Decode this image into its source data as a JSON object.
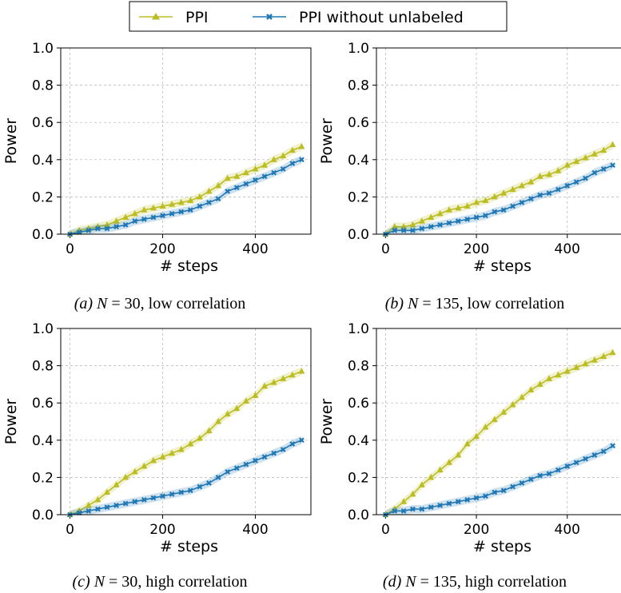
{
  "legend": {
    "entries": [
      {
        "label": "PPI",
        "color": "#bcbd22",
        "marker": "triangle"
      },
      {
        "label": "PPI without unlabeled",
        "color": "#1f77b4",
        "marker": "x"
      }
    ]
  },
  "chart_data": [
    {
      "type": "line",
      "caption": {
        "tag": "(a)",
        "variable": "N",
        "eq": " = 30",
        "text": ", low correlation"
      },
      "xlabel": "# steps",
      "ylabel": "Power",
      "xlim": [
        -20,
        520
      ],
      "ylim": [
        0,
        1.0
      ],
      "xticks": [
        "0",
        "200",
        "400"
      ],
      "yticks": [
        "0.0",
        "0.2",
        "0.4",
        "0.6",
        "0.8",
        "1.0"
      ],
      "grid": true,
      "x": [
        0,
        20,
        40,
        60,
        80,
        100,
        120,
        140,
        160,
        180,
        200,
        220,
        240,
        260,
        280,
        300,
        320,
        340,
        360,
        380,
        400,
        420,
        440,
        460,
        480,
        500
      ],
      "series": [
        {
          "name": "PPI",
          "values": [
            0.0,
            0.02,
            0.03,
            0.04,
            0.05,
            0.07,
            0.09,
            0.11,
            0.13,
            0.14,
            0.15,
            0.16,
            0.17,
            0.18,
            0.2,
            0.23,
            0.26,
            0.3,
            0.31,
            0.33,
            0.35,
            0.37,
            0.4,
            0.42,
            0.45,
            0.47
          ]
        },
        {
          "name": "PPI without unlabeled",
          "values": [
            0.0,
            0.01,
            0.02,
            0.03,
            0.03,
            0.04,
            0.05,
            0.07,
            0.08,
            0.09,
            0.1,
            0.11,
            0.12,
            0.13,
            0.15,
            0.17,
            0.19,
            0.23,
            0.25,
            0.27,
            0.29,
            0.31,
            0.33,
            0.35,
            0.38,
            0.4
          ]
        }
      ]
    },
    {
      "type": "line",
      "caption": {
        "tag": "(b)",
        "variable": "N",
        "eq": " = 135",
        "text": ", low correlation"
      },
      "xlabel": "# steps",
      "ylabel": "Power",
      "xlim": [
        -20,
        520
      ],
      "ylim": [
        0,
        1.0
      ],
      "xticks": [
        "0",
        "200",
        "400"
      ],
      "yticks": [
        "0.0",
        "0.2",
        "0.4",
        "0.6",
        "0.8",
        "1.0"
      ],
      "grid": true,
      "x": [
        0,
        20,
        40,
        60,
        80,
        100,
        120,
        140,
        160,
        180,
        200,
        220,
        240,
        260,
        280,
        300,
        320,
        340,
        360,
        380,
        400,
        420,
        440,
        460,
        480,
        500
      ],
      "series": [
        {
          "name": "PPI",
          "values": [
            0.0,
            0.04,
            0.04,
            0.05,
            0.07,
            0.09,
            0.11,
            0.13,
            0.14,
            0.15,
            0.17,
            0.18,
            0.2,
            0.22,
            0.24,
            0.26,
            0.28,
            0.31,
            0.32,
            0.34,
            0.37,
            0.39,
            0.41,
            0.43,
            0.45,
            0.48
          ]
        },
        {
          "name": "PPI without unlabeled",
          "values": [
            0.0,
            0.02,
            0.02,
            0.02,
            0.03,
            0.04,
            0.05,
            0.06,
            0.07,
            0.08,
            0.09,
            0.1,
            0.12,
            0.13,
            0.15,
            0.17,
            0.19,
            0.21,
            0.22,
            0.24,
            0.26,
            0.28,
            0.3,
            0.33,
            0.35,
            0.37
          ]
        }
      ]
    },
    {
      "type": "line",
      "caption": {
        "tag": "(c)",
        "variable": "N",
        "eq": " = 30",
        "text": ", high correlation"
      },
      "xlabel": "# steps",
      "ylabel": "Power",
      "xlim": [
        -20,
        520
      ],
      "ylim": [
        0,
        1.0
      ],
      "xticks": [
        "0",
        "200",
        "400"
      ],
      "yticks": [
        "0.0",
        "0.2",
        "0.4",
        "0.6",
        "0.8",
        "1.0"
      ],
      "grid": true,
      "x": [
        0,
        20,
        40,
        60,
        80,
        100,
        120,
        140,
        160,
        180,
        200,
        220,
        240,
        260,
        280,
        300,
        320,
        340,
        360,
        380,
        400,
        420,
        440,
        460,
        480,
        500
      ],
      "series": [
        {
          "name": "PPI",
          "values": [
            0.0,
            0.02,
            0.05,
            0.08,
            0.12,
            0.16,
            0.2,
            0.23,
            0.26,
            0.29,
            0.31,
            0.33,
            0.35,
            0.38,
            0.41,
            0.45,
            0.5,
            0.54,
            0.57,
            0.61,
            0.64,
            0.69,
            0.71,
            0.73,
            0.75,
            0.77
          ]
        },
        {
          "name": "PPI without unlabeled",
          "values": [
            0.0,
            0.01,
            0.02,
            0.03,
            0.04,
            0.05,
            0.06,
            0.07,
            0.08,
            0.09,
            0.1,
            0.11,
            0.12,
            0.13,
            0.15,
            0.17,
            0.2,
            0.23,
            0.25,
            0.27,
            0.29,
            0.31,
            0.33,
            0.35,
            0.38,
            0.4
          ]
        }
      ]
    },
    {
      "type": "line",
      "caption": {
        "tag": "(d)",
        "variable": "N",
        "eq": " = 135",
        "text": ", high correlation"
      },
      "xlabel": "# steps",
      "ylabel": "Power",
      "xlim": [
        -20,
        520
      ],
      "ylim": [
        0,
        1.0
      ],
      "xticks": [
        "0",
        "200",
        "400"
      ],
      "yticks": [
        "0.0",
        "0.2",
        "0.4",
        "0.6",
        "0.8",
        "1.0"
      ],
      "grid": true,
      "x": [
        0,
        20,
        40,
        60,
        80,
        100,
        120,
        140,
        160,
        180,
        200,
        220,
        240,
        260,
        280,
        300,
        320,
        340,
        360,
        380,
        400,
        420,
        440,
        460,
        480,
        500
      ],
      "series": [
        {
          "name": "PPI",
          "values": [
            0.0,
            0.03,
            0.07,
            0.11,
            0.16,
            0.2,
            0.24,
            0.28,
            0.32,
            0.38,
            0.42,
            0.47,
            0.51,
            0.55,
            0.59,
            0.63,
            0.67,
            0.7,
            0.73,
            0.75,
            0.77,
            0.79,
            0.81,
            0.83,
            0.85,
            0.87
          ]
        },
        {
          "name": "PPI without unlabeled",
          "values": [
            0.0,
            0.02,
            0.02,
            0.03,
            0.03,
            0.04,
            0.05,
            0.06,
            0.07,
            0.08,
            0.09,
            0.1,
            0.12,
            0.13,
            0.15,
            0.17,
            0.19,
            0.21,
            0.22,
            0.24,
            0.26,
            0.28,
            0.3,
            0.32,
            0.34,
            0.37
          ]
        }
      ]
    }
  ]
}
